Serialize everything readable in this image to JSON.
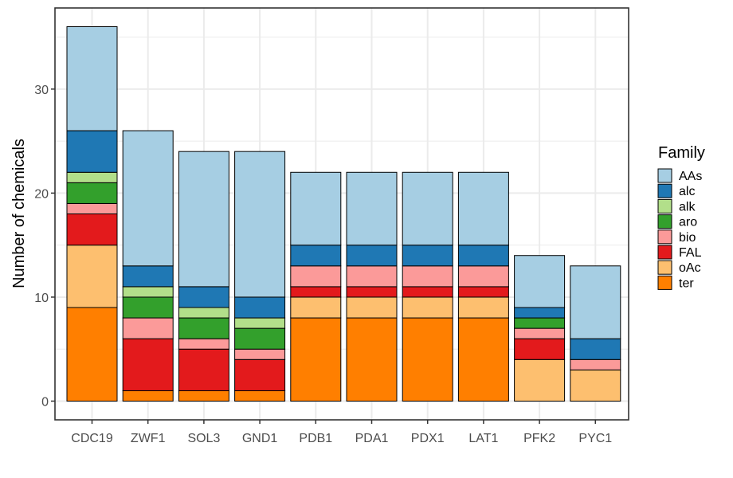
{
  "chart_data": {
    "type": "bar",
    "stacked": true,
    "categories": [
      "CDC19",
      "ZWF1",
      "SOL3",
      "GND1",
      "PDB1",
      "PDA1",
      "PDX1",
      "LAT1",
      "PFK2",
      "PYC1"
    ],
    "series": [
      {
        "name": "ter",
        "color": "#ff7f00",
        "values": [
          9,
          1,
          1,
          1,
          8,
          8,
          8,
          8,
          0,
          0
        ]
      },
      {
        "name": "oAc",
        "color": "#fdbf6f",
        "values": [
          6,
          0,
          0,
          0,
          2,
          2,
          2,
          2,
          4,
          3
        ]
      },
      {
        "name": "FAL",
        "color": "#e31a1c",
        "values": [
          3,
          5,
          4,
          3,
          1,
          1,
          1,
          1,
          2,
          0
        ]
      },
      {
        "name": "bio",
        "color": "#fb9a99",
        "values": [
          1,
          2,
          1,
          1,
          2,
          2,
          2,
          2,
          1,
          1
        ]
      },
      {
        "name": "aro",
        "color": "#33a02c",
        "values": [
          2,
          2,
          2,
          2,
          0,
          0,
          0,
          0,
          1,
          0
        ]
      },
      {
        "name": "alk",
        "color": "#b2df8a",
        "values": [
          1,
          1,
          1,
          1,
          0,
          0,
          0,
          0,
          0,
          0
        ]
      },
      {
        "name": "alc",
        "color": "#1f78b4",
        "values": [
          4,
          2,
          2,
          2,
          2,
          2,
          2,
          2,
          1,
          2
        ]
      },
      {
        "name": "AAs",
        "color": "#a6cee3",
        "values": [
          10,
          13,
          13,
          14,
          7,
          7,
          7,
          7,
          5,
          7
        ]
      }
    ],
    "legend_order": [
      "AAs",
      "alc",
      "alk",
      "aro",
      "bio",
      "FAL",
      "oAc",
      "ter"
    ],
    "legend_title": "Family",
    "legend_position": "right",
    "xlabel": "",
    "ylabel": "Number of chemicals",
    "ylim": [
      -1.8,
      37.8
    ],
    "yticks": [
      0,
      10,
      20,
      30
    ],
    "grid": true
  }
}
